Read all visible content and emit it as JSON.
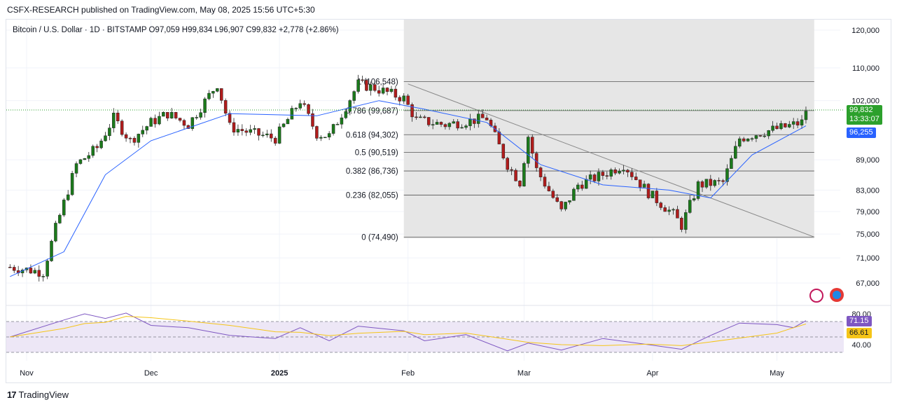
{
  "publisher_text": "CSFX-RESEARCH published on TradingView.com, May 08, 2025 15:56 UTC+5:30",
  "brand": "TradingView",
  "header": {
    "symbol": "Bitcoin / U.S. Dollar · 1D · BITSTAMP",
    "open": "O97,059",
    "high": "H99,834",
    "low": "L96,907",
    "close": "C99,832",
    "change": "+2,778 (+2.86%)"
  },
  "tags": {
    "last_price": "99,832",
    "countdown": "13:33:07",
    "ma_value": "96,255",
    "rsi_value": "71.15",
    "rsi_ma_value": "66.61"
  },
  "colors": {
    "up": "#26a69a",
    "up_candle": "#1b7a1b",
    "down": "#b11c1c",
    "ma": "#2962ff",
    "rsi": "#7e57c2",
    "rsi_ma": "#f5c518",
    "fib_zone": "#e6e6e6",
    "last_price": "#2ca02c"
  },
  "chart_data": {
    "type": "candlestick",
    "price_axis": {
      "ticks": [
        120000,
        110000,
        102000,
        89000,
        83000,
        79000,
        75000,
        71000,
        67000
      ],
      "labels": [
        "120,000",
        "110,000",
        "102,000",
        "89,000",
        "83,000",
        "79,000",
        "75,000",
        "71,000",
        "67,000"
      ],
      "scale": "log"
    },
    "x_axis": {
      "labels": [
        "Nov",
        "Dec",
        "2025",
        "Feb",
        "Mar",
        "Apr",
        "May"
      ],
      "dates": [
        "2024-11-01",
        "2024-12-01",
        "2025-01-01",
        "2025-02-01",
        "2025-03-01",
        "2025-04-01",
        "2025-05-01"
      ]
    },
    "close_series": {
      "name": "BTCUSD close (approx.)",
      "points": [
        [
          "2024-10-28",
          69500
        ],
        [
          "2024-11-05",
          68700
        ],
        [
          "2024-11-08",
          76000
        ],
        [
          "2024-11-13",
          88000
        ],
        [
          "2024-11-18",
          91500
        ],
        [
          "2024-11-22",
          98000
        ],
        [
          "2024-11-26",
          93000
        ],
        [
          "2024-12-01",
          97000
        ],
        [
          "2024-12-05",
          99000
        ],
        [
          "2024-12-10",
          96500
        ],
        [
          "2024-12-17",
          106000
        ],
        [
          "2024-12-20",
          96000
        ],
        [
          "2024-12-26",
          94500
        ],
        [
          "2024-12-31",
          93500
        ],
        [
          "2025-01-06",
          102000
        ],
        [
          "2025-01-10",
          94500
        ],
        [
          "2025-01-13",
          94000
        ],
        [
          "2025-01-20",
          106000
        ],
        [
          "2025-01-24",
          105000
        ],
        [
          "2025-01-31",
          102500
        ],
        [
          "2025-02-03",
          97500
        ],
        [
          "2025-02-10",
          96500
        ],
        [
          "2025-02-20",
          98000
        ],
        [
          "2025-02-25",
          88000
        ],
        [
          "2025-02-28",
          84500
        ],
        [
          "2025-03-02",
          94000
        ],
        [
          "2025-03-04",
          87000
        ],
        [
          "2025-03-10",
          79000
        ],
        [
          "2025-03-14",
          84000
        ],
        [
          "2025-03-20",
          86000
        ],
        [
          "2025-03-25",
          88000
        ],
        [
          "2025-03-31",
          82500
        ],
        [
          "2025-04-06",
          78500
        ],
        [
          "2025-04-08",
          76500
        ],
        [
          "2025-04-12",
          84000
        ],
        [
          "2025-04-18",
          84500
        ],
        [
          "2025-04-22",
          93500
        ],
        [
          "2025-04-28",
          95000
        ],
        [
          "2025-05-03",
          96000
        ],
        [
          "2025-05-07",
          97000
        ],
        [
          "2025-05-08",
          99832
        ]
      ]
    },
    "ma_series": {
      "name": "MA",
      "points": [
        [
          "2024-10-28",
          68000
        ],
        [
          "2024-11-10",
          72000
        ],
        [
          "2024-11-20",
          86000
        ],
        [
          "2024-12-01",
          93000
        ],
        [
          "2024-12-20",
          99000
        ],
        [
          "2025-01-10",
          98500
        ],
        [
          "2025-01-25",
          102000
        ],
        [
          "2025-02-05",
          100000
        ],
        [
          "2025-02-20",
          97000
        ],
        [
          "2025-03-05",
          88000
        ],
        [
          "2025-03-20",
          84000
        ],
        [
          "2025-04-05",
          83000
        ],
        [
          "2025-04-15",
          81500
        ],
        [
          "2025-04-25",
          90000
        ],
        [
          "2025-05-08",
          96255
        ]
      ]
    },
    "fibonacci": {
      "levels": [
        {
          "label": "1 (106,548)",
          "ratio": 1,
          "price": 106548
        },
        {
          "label": "0.786 (99,687)",
          "ratio": 0.786,
          "price": 99687
        },
        {
          "label": "0.618 (94,302)",
          "ratio": 0.618,
          "price": 94302
        },
        {
          "label": "0.5 (90,519)",
          "ratio": 0.5,
          "price": 90519
        },
        {
          "label": "0.382 (86,736)",
          "ratio": 0.382,
          "price": 86736
        },
        {
          "label": "0.236 (82,055)",
          "ratio": 0.236,
          "price": 82055
        },
        {
          "label": "0 (74,490)",
          "ratio": 0,
          "price": 74490
        }
      ],
      "range_dates": [
        "2025-01-31",
        "2025-05-10"
      ]
    },
    "trendline": {
      "from": [
        "2025-02-01",
        106000
      ],
      "to": [
        "2025-05-10",
        74490
      ]
    },
    "rsi": {
      "ticks": [
        80,
        40
      ],
      "labels": [
        "80.00",
        "40.00"
      ],
      "overbought": 70,
      "oversold": 30,
      "last": 71.15,
      "ma_last": 66.61,
      "points": [
        [
          "2024-10-28",
          50
        ],
        [
          "2024-11-10",
          72
        ],
        [
          "2024-11-15",
          80
        ],
        [
          "2024-11-20",
          74
        ],
        [
          "2024-11-25",
          81
        ],
        [
          "2024-12-01",
          65
        ],
        [
          "2024-12-10",
          62
        ],
        [
          "2024-12-20",
          52
        ],
        [
          "2024-12-31",
          48
        ],
        [
          "2025-01-06",
          62
        ],
        [
          "2025-01-13",
          45
        ],
        [
          "2025-01-20",
          64
        ],
        [
          "2025-01-31",
          58
        ],
        [
          "2025-02-05",
          45
        ],
        [
          "2025-02-15",
          53
        ],
        [
          "2025-02-25",
          32
        ],
        [
          "2025-03-02",
          42
        ],
        [
          "2025-03-10",
          33
        ],
        [
          "2025-03-20",
          48
        ],
        [
          "2025-03-31",
          40
        ],
        [
          "2025-04-08",
          34
        ],
        [
          "2025-04-15",
          52
        ],
        [
          "2025-04-22",
          68
        ],
        [
          "2025-05-01",
          66
        ],
        [
          "2025-05-05",
          62
        ],
        [
          "2025-05-08",
          71.15
        ]
      ]
    }
  }
}
